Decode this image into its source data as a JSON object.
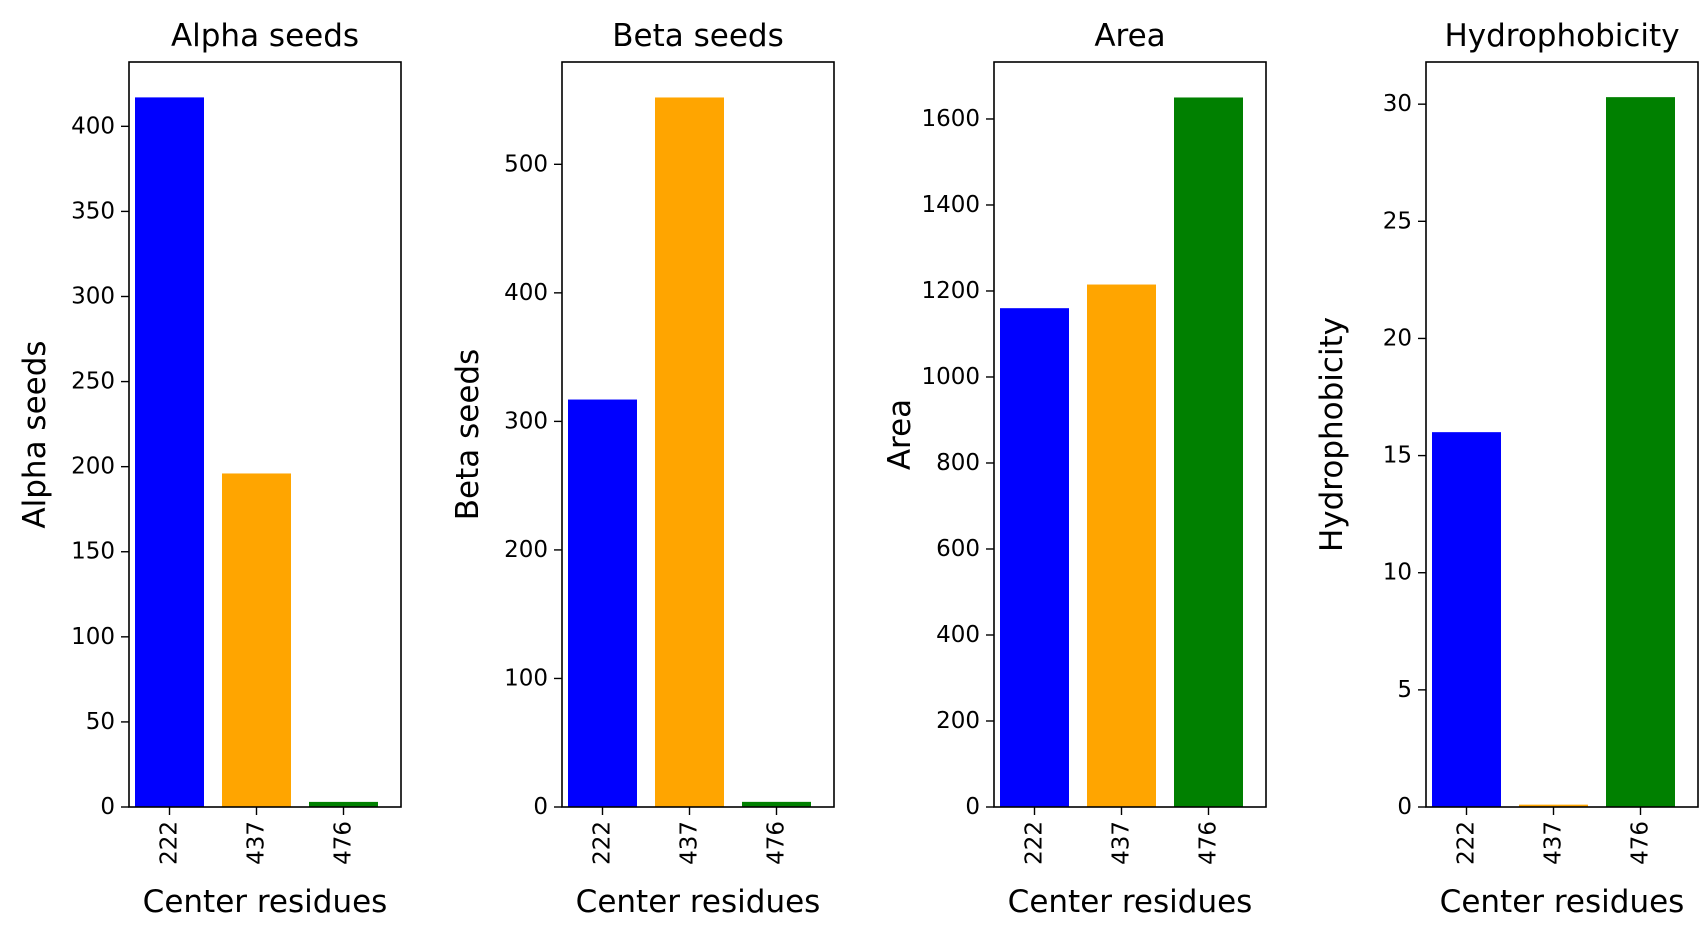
{
  "chart_data": [
    {
      "type": "bar",
      "title": "Alpha seeds",
      "xlabel": "Center residues",
      "ylabel": "Alpha seeds",
      "categories": [
        "222",
        "437",
        "476"
      ],
      "values": [
        417,
        196,
        3
      ],
      "colors": [
        "#0000ff",
        "#ffa500",
        "#008000"
      ],
      "ylim": [
        0,
        437.8
      ],
      "yticks": [
        0,
        50,
        100,
        150,
        200,
        250,
        300,
        350,
        400
      ],
      "grid": false
    },
    {
      "type": "bar",
      "title": "Beta seeds",
      "xlabel": "Center residues",
      "ylabel": "Beta seeds",
      "categories": [
        "222",
        "437",
        "476"
      ],
      "values": [
        317,
        552,
        4
      ],
      "colors": [
        "#0000ff",
        "#ffa500",
        "#008000"
      ],
      "ylim": [
        0,
        579.6
      ],
      "yticks": [
        0,
        100,
        200,
        300,
        400,
        500
      ],
      "grid": false
    },
    {
      "type": "bar",
      "title": "Area",
      "xlabel": "Center residues",
      "ylabel": "Area",
      "categories": [
        "222",
        "437",
        "476"
      ],
      "values": [
        1160,
        1215,
        1650
      ],
      "colors": [
        "#0000ff",
        "#ffa500",
        "#008000"
      ],
      "ylim": [
        0,
        1732.5
      ],
      "yticks": [
        0,
        200,
        400,
        600,
        800,
        1000,
        1200,
        1400,
        1600
      ],
      "grid": false
    },
    {
      "type": "bar",
      "title": "Hydrophobicity",
      "xlabel": "Center residues",
      "ylabel": "Hydrophobicity",
      "categories": [
        "222",
        "437",
        "476"
      ],
      "values": [
        16,
        0.1,
        30.3
      ],
      "colors": [
        "#0000ff",
        "#ffa500",
        "#008000"
      ],
      "ylim": [
        0,
        31.8
      ],
      "yticks": [
        0,
        5,
        10,
        15,
        20,
        25,
        30
      ],
      "grid": false
    }
  ]
}
